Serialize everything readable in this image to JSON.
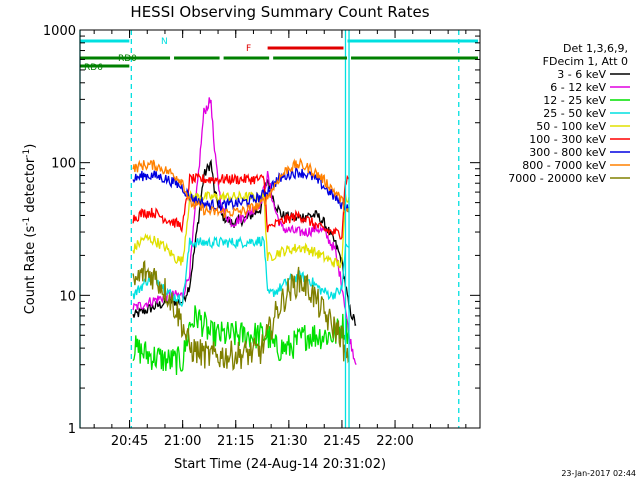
{
  "chart_data": {
    "type": "line",
    "title": "HESSI Observing Summary Count Rates",
    "xlabel": "Start Time (24-Aug-14 20:31:02)",
    "ylabel_text": "Count Rate (s",
    "ylabel_sup1": "-1",
    "ylabel_mid": " detector",
    "ylabel_sup2": "-1",
    "ylabel_end": ")",
    "ylabel": "Count Rate (s^-1 detector^-1)",
    "yscale": "log",
    "ylim": [
      1,
      1000
    ],
    "xlim_minutes": [
      0,
      113
    ],
    "x_ticks": [
      {
        "t": 14,
        "label": "20:45"
      },
      {
        "t": 29,
        "label": "21:00"
      },
      {
        "t": 44,
        "label": "21:15"
      },
      {
        "t": 59,
        "label": "21:30"
      },
      {
        "t": 74,
        "label": "21:45"
      },
      {
        "t": 89,
        "label": "22:00"
      }
    ],
    "y_ticks": [
      {
        "v": 1,
        "label": "1"
      },
      {
        "v": 10,
        "label": "10"
      },
      {
        "v": 100,
        "label": "100"
      },
      {
        "v": 1000,
        "label": "1000"
      }
    ],
    "legend_header": [
      "Det 1,3,6,9,",
      "FDecim 1, Att 0"
    ],
    "legend_position": "right",
    "date_stamp": "23-Jan-2017 02:44",
    "series": [
      {
        "name": "3 - 6 keV",
        "color": "#000000",
        "points": [
          [
            15,
            7
          ],
          [
            20,
            8
          ],
          [
            25,
            9
          ],
          [
            29,
            9
          ],
          [
            31,
            12
          ],
          [
            33,
            30
          ],
          [
            35,
            80
          ],
          [
            37,
            100
          ],
          [
            38,
            60
          ],
          [
            40,
            40
          ],
          [
            43,
            35
          ],
          [
            47,
            38
          ],
          [
            51,
            45
          ],
          [
            53,
            75
          ],
          [
            55,
            50
          ],
          [
            57,
            40
          ],
          [
            61,
            38
          ],
          [
            64,
            40
          ],
          [
            67,
            40
          ],
          [
            69,
            35
          ],
          [
            72,
            25
          ],
          [
            74,
            18
          ],
          [
            75,
            12
          ],
          [
            76,
            8
          ],
          [
            78,
            6
          ]
        ]
      },
      {
        "name": "6 - 12 keV",
        "color": "#e000e0",
        "points": [
          [
            15,
            8
          ],
          [
            20,
            9
          ],
          [
            25,
            10
          ],
          [
            29,
            10
          ],
          [
            31,
            15
          ],
          [
            33,
            60
          ],
          [
            35,
            240
          ],
          [
            37,
            300
          ],
          [
            38,
            120
          ],
          [
            40,
            45
          ],
          [
            43,
            35
          ],
          [
            47,
            40
          ],
          [
            51,
            50
          ],
          [
            53,
            80
          ],
          [
            55,
            45
          ],
          [
            57,
            32
          ],
          [
            61,
            30
          ],
          [
            64,
            30
          ],
          [
            67,
            32
          ],
          [
            69,
            30
          ],
          [
            72,
            22
          ],
          [
            74,
            12
          ],
          [
            75,
            8
          ],
          [
            76,
            5
          ],
          [
            78,
            3
          ]
        ]
      },
      {
        "name": "12 - 25 keV",
        "color": "#00e000",
        "points": [
          [
            15,
            4
          ],
          [
            20,
            3.5
          ],
          [
            25,
            3.2
          ],
          [
            29,
            3.2
          ],
          [
            31,
            6
          ],
          [
            33,
            7
          ],
          [
            35,
            6
          ],
          [
            37,
            5
          ],
          [
            40,
            5
          ],
          [
            43,
            5
          ],
          [
            47,
            5
          ],
          [
            51,
            5
          ],
          [
            53,
            5
          ],
          [
            55,
            4
          ],
          [
            59,
            4
          ],
          [
            64,
            5
          ],
          [
            69,
            5
          ],
          [
            72,
            5
          ],
          [
            74,
            6
          ],
          [
            75,
            5.5
          ],
          [
            76,
            5.5
          ]
        ]
      },
      {
        "name": "25 - 50 keV",
        "color": "#00e0e0",
        "points": [
          [
            15,
            10
          ],
          [
            19,
            13
          ],
          [
            21,
            14
          ],
          [
            23,
            12
          ],
          [
            26,
            10
          ],
          [
            29,
            9
          ],
          [
            31,
            25
          ],
          [
            40,
            25
          ],
          [
            45,
            25
          ],
          [
            52,
            26
          ],
          [
            53,
            10
          ],
          [
            56,
            11
          ],
          [
            59,
            13
          ],
          [
            62,
            14
          ],
          [
            65,
            13
          ],
          [
            68,
            11
          ],
          [
            71,
            10
          ],
          [
            74,
            11
          ],
          [
            75,
            23
          ],
          [
            76,
            23
          ]
        ]
      },
      {
        "name": "50 - 100 keV",
        "color": "#e0e000",
        "points": [
          [
            15,
            22
          ],
          [
            18,
            27
          ],
          [
            21,
            26
          ],
          [
            24,
            23
          ],
          [
            27,
            19
          ],
          [
            29,
            18
          ],
          [
            31,
            55
          ],
          [
            36,
            55
          ],
          [
            41,
            55
          ],
          [
            46,
            55
          ],
          [
            52,
            55
          ],
          [
            53,
            19
          ],
          [
            56,
            21
          ],
          [
            59,
            22
          ],
          [
            62,
            23
          ],
          [
            65,
            22
          ],
          [
            68,
            20
          ],
          [
            71,
            18
          ],
          [
            74,
            17
          ],
          [
            75,
            55
          ],
          [
            76,
            55
          ]
        ]
      },
      {
        "name": "100 - 300 keV",
        "color": "#ff0000",
        "points": [
          [
            15,
            38
          ],
          [
            18,
            42
          ],
          [
            21,
            42
          ],
          [
            24,
            38
          ],
          [
            27,
            35
          ],
          [
            29,
            33
          ],
          [
            31,
            75
          ],
          [
            36,
            75
          ],
          [
            41,
            75
          ],
          [
            46,
            75
          ],
          [
            52,
            75
          ],
          [
            53,
            32
          ],
          [
            56,
            35
          ],
          [
            59,
            38
          ],
          [
            62,
            40
          ],
          [
            65,
            36
          ],
          [
            68,
            32
          ],
          [
            71,
            30
          ],
          [
            74,
            29
          ],
          [
            75,
            75
          ],
          [
            76,
            75
          ]
        ]
      },
      {
        "name": "300 - 800 keV",
        "color": "#0000e0",
        "points": [
          [
            15,
            75
          ],
          [
            18,
            80
          ],
          [
            21,
            80
          ],
          [
            24,
            76
          ],
          [
            27,
            70
          ],
          [
            29,
            65
          ],
          [
            31,
            55
          ],
          [
            36,
            48
          ],
          [
            41,
            48
          ],
          [
            46,
            50
          ],
          [
            51,
            55
          ],
          [
            53,
            62
          ],
          [
            56,
            75
          ],
          [
            59,
            82
          ],
          [
            62,
            85
          ],
          [
            65,
            80
          ],
          [
            68,
            70
          ],
          [
            71,
            58
          ],
          [
            74,
            48
          ],
          [
            75,
            47
          ],
          [
            76,
            46
          ]
        ]
      },
      {
        "name": "800 - 7000 keV",
        "color": "#ff8000",
        "points": [
          [
            15,
            90
          ],
          [
            18,
            96
          ],
          [
            21,
            96
          ],
          [
            24,
            88
          ],
          [
            27,
            80
          ],
          [
            29,
            72
          ],
          [
            31,
            50
          ],
          [
            36,
            43
          ],
          [
            41,
            42
          ],
          [
            46,
            43
          ],
          [
            51,
            48
          ],
          [
            53,
            55
          ],
          [
            56,
            75
          ],
          [
            59,
            92
          ],
          [
            62,
            97
          ],
          [
            65,
            90
          ],
          [
            68,
            78
          ],
          [
            71,
            65
          ],
          [
            74,
            52
          ],
          [
            75,
            43
          ],
          [
            76,
            42
          ]
        ]
      },
      {
        "name": "7000 - 20000 keV",
        "color": "#808000",
        "points": [
          [
            15,
            12
          ],
          [
            18,
            15
          ],
          [
            21,
            14
          ],
          [
            24,
            11
          ],
          [
            27,
            8
          ],
          [
            29,
            6
          ],
          [
            31,
            4
          ],
          [
            36,
            3.5
          ],
          [
            41,
            3.5
          ],
          [
            46,
            3.6
          ],
          [
            51,
            3.8
          ],
          [
            53,
            5
          ],
          [
            56,
            8
          ],
          [
            59,
            11
          ],
          [
            62,
            13
          ],
          [
            65,
            11
          ],
          [
            68,
            8
          ],
          [
            71,
            6
          ],
          [
            74,
            5
          ],
          [
            75,
            3.3
          ],
          [
            76,
            3.3
          ]
        ]
      }
    ],
    "status_bars": [
      {
        "label": "N",
        "color": "#00e0e0",
        "lane": "N",
        "segments": [
          [
            0,
            14.5
          ],
          [
            75,
            113
          ]
        ]
      },
      {
        "label": "F",
        "color": "#e00000",
        "lane": "F",
        "segments": [
          [
            53,
            75
          ]
        ]
      },
      {
        "label": "RD0",
        "color": "#008000",
        "lane": "RD0",
        "segments": [
          [
            0,
            26
          ],
          [
            26,
            40
          ],
          [
            40,
            54
          ],
          [
            54,
            76
          ],
          [
            76,
            113
          ]
        ]
      },
      {
        "label": "RD6",
        "color": "#008000",
        "lane": "RD6",
        "segments": [
          [
            0,
            14.5
          ]
        ]
      }
    ],
    "saa_markers": [
      {
        "t": 0,
        "style": "solid",
        "color": "#00e0e0"
      },
      {
        "t": 14.5,
        "style": "dashed",
        "color": "#00e0e0"
      },
      {
        "t": 75,
        "style": "solid",
        "color": "#00e0e0"
      },
      {
        "t": 76,
        "style": "solid",
        "color": "#00e0e0"
      },
      {
        "t": 107,
        "style": "dashed",
        "color": "#00e0e0"
      }
    ]
  }
}
